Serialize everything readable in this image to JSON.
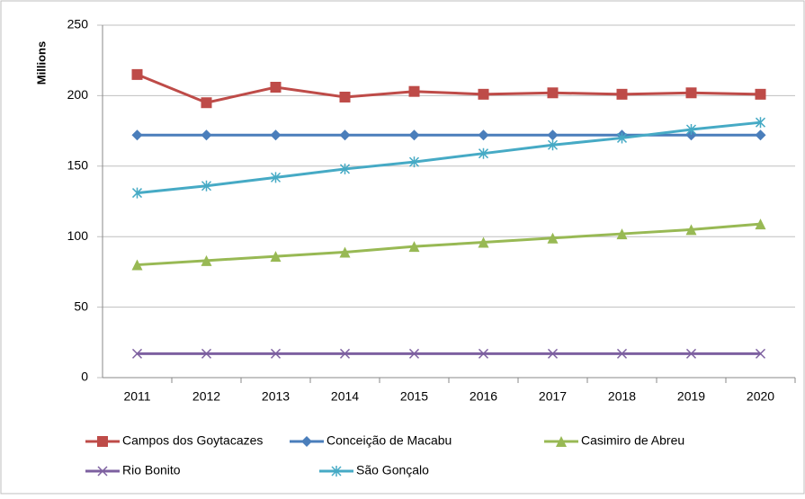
{
  "chart_data": {
    "type": "line",
    "y_label": "Millions",
    "categories": [
      "2011",
      "2012",
      "2013",
      "2014",
      "2015",
      "2016",
      "2017",
      "2018",
      "2019",
      "2020"
    ],
    "series": [
      {
        "name": "Campos dos Goytacazes",
        "color": "#be4b48",
        "marker": "square",
        "values": [
          215,
          195,
          206,
          199,
          203,
          201,
          202,
          201,
          202,
          201
        ]
      },
      {
        "name": "Conceição de Macabu",
        "color": "#4a7ebb",
        "marker": "diamond",
        "values": [
          172,
          172,
          172,
          172,
          172,
          172,
          172,
          172,
          172,
          172
        ]
      },
      {
        "name": "Casimiro de Abreu",
        "color": "#98b954",
        "marker": "triangle",
        "values": [
          80,
          83,
          86,
          89,
          93,
          96,
          99,
          102,
          105,
          109
        ]
      },
      {
        "name": "Rio Bonito",
        "color": "#7d60a0",
        "marker": "x",
        "values": [
          17,
          17,
          17,
          17,
          17,
          17,
          17,
          17,
          17,
          17
        ]
      },
      {
        "name": "São Gonçalo",
        "color": "#46aac5",
        "marker": "star",
        "values": [
          131,
          136,
          142,
          148,
          153,
          159,
          165,
          170,
          176,
          181
        ]
      }
    ],
    "ylim": [
      0,
      250
    ],
    "yticks": [
      0,
      50,
      100,
      150,
      200,
      250
    ],
    "grid": true,
    "legend": "bottom"
  }
}
